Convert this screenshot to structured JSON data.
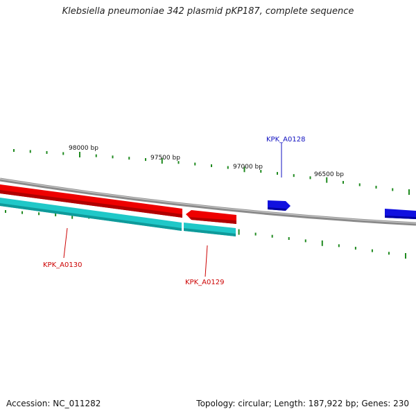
{
  "title": "Klebsiella pneumoniae 342 plasmid pKP187, complete sequence",
  "footer": {
    "accession": "Accession: NC_011282",
    "summary": "Topology: circular; Length: 187,922 bp; Genes: 230"
  },
  "colors": {
    "backbone": "#8a8a8a",
    "forward_gene": "#1010e0",
    "reverse_gene": "#ee0000",
    "cds_track": "#20c8c8",
    "tick": "#1f8a1f",
    "forward_label": "#1010c0",
    "reverse_label": "#cc0000"
  },
  "position_labels": [
    "98000 bp",
    "97500 bp",
    "97000 bp",
    "96500 bp"
  ],
  "genes": [
    {
      "name": "KPK_A0128",
      "strand": "forward"
    },
    {
      "name": "KPK_A0129",
      "strand": "reverse"
    },
    {
      "name": "KPK_A0130",
      "strand": "reverse"
    }
  ]
}
